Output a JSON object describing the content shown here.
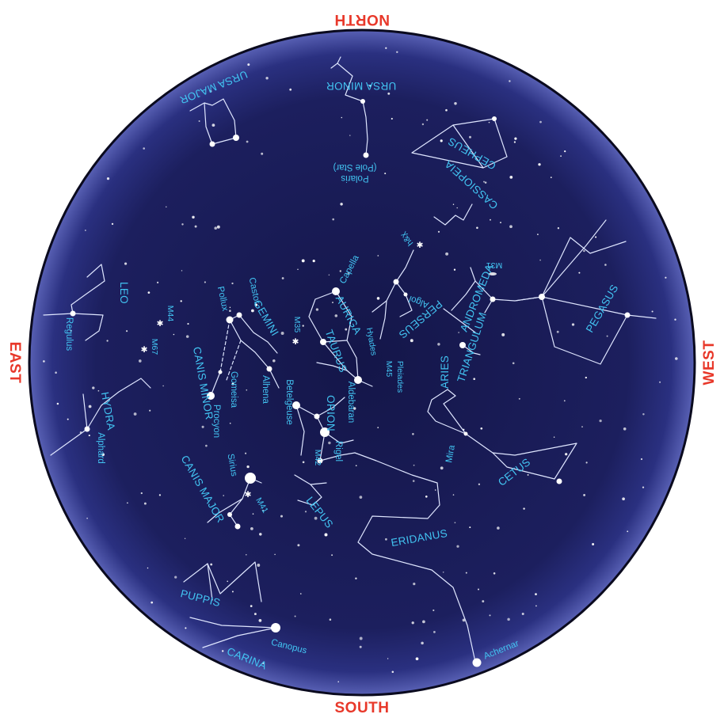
{
  "title": "",
  "colors": {
    "sky": "#191c58",
    "rim": "#4a52a8",
    "labels": "#42c4f2",
    "directions": "#e8382a",
    "lines": "#ffffff"
  },
  "directions": {
    "north": "NORTH",
    "south": "SOUTH",
    "east": "EAST",
    "west": "WEST"
  },
  "constellations": {
    "ursa_major": "URSA MAJOR",
    "ursa_minor": "URSA MINOR",
    "cepheus": "CEPHEUS",
    "cassiopeia": "CASSIOPEIA",
    "leo": "LEO",
    "gemini": "GEMINI",
    "auriga": "AURIGA",
    "perseus": "PERSEUS",
    "andromeda": "ANDROMEDA",
    "triangulum": "TRIANGULUM",
    "pegasus": "PEGASUS",
    "taurus": "TAURUS",
    "aries": "ARIES",
    "canis_minor": "CANIS MINOR",
    "hydra": "HYDRA",
    "orion": "ORION",
    "cetus": "CETUS",
    "canis_major": "CANIS MAJOR",
    "lepus": "LEPUS",
    "eridanus": "ERIDANUS",
    "puppis": "PUPPIS",
    "carina": "CARINA"
  },
  "stars": {
    "polaris_1": "Polaris",
    "polaris_2": "(Pole Star)",
    "capella": "Capella",
    "algol": "Algol",
    "castor": "Castor",
    "pollux": "Pollux",
    "alhena": "Alhena",
    "gomeisa": "Gomeisa",
    "procyon": "Procyon",
    "regulus": "Regulus",
    "betelgeuse": "Betelgeuse",
    "aldebaran": "Aldebaran",
    "rigel": "Rigel",
    "sirius": "Sirius",
    "alphard": "Alphard",
    "mira": "Mira",
    "canopus": "Canopus",
    "achernar": "Achernar"
  },
  "objects": {
    "hx": "h&χ",
    "m31": "M31",
    "m35": "M35",
    "m44": "M44",
    "m67": "M67",
    "hyades": "Hyades",
    "pleiades": "Pleiades",
    "m45": "M45",
    "m42": "M42",
    "m41": "M41"
  }
}
